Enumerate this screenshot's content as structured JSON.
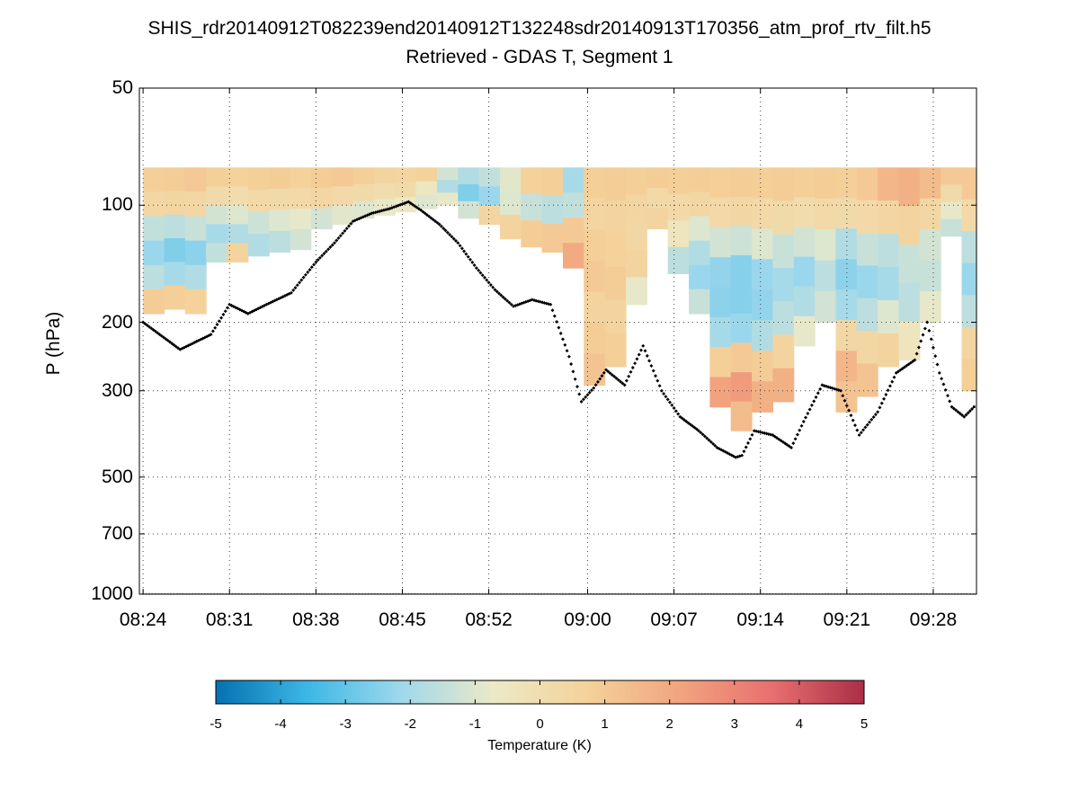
{
  "chart_data": {
    "type": "heatmap",
    "title": "SHIS_rdr20140912T082239end20140912T132248sdr20140913T170356_atm_prof_rtv_filt.h5",
    "subtitle": "Retrieved - GDAS T, Segment 1",
    "ylabel": "P (hPa)",
    "yscale": "log",
    "yaxis_reversed": true,
    "ylim": [
      50,
      1000
    ],
    "y_ticks": [
      50,
      100,
      200,
      300,
      500,
      700,
      1000
    ],
    "y_tick_labels": [
      "50",
      "100",
      "200",
      "300",
      "500",
      "700",
      "1000"
    ],
    "x_range_minutes": [
      -0.3,
      67.5
    ],
    "x_tick_minutes": [
      0,
      7,
      14,
      21,
      28,
      36,
      43,
      50,
      57,
      64
    ],
    "x_tick_labels": [
      "08:24",
      "08:31",
      "08:38",
      "08:45",
      "08:52",
      "09:00",
      "09:07",
      "09:14",
      "09:21",
      "09:28"
    ],
    "grid": true,
    "colorbar": {
      "label": "Temperature (K)",
      "min": -5,
      "max": 5,
      "ticks": [
        -5,
        -4,
        -3,
        -2,
        -1,
        0,
        1,
        2,
        3,
        4,
        5
      ],
      "tick_labels": [
        "-5",
        "-4",
        "-3",
        "-2",
        "-1",
        "0",
        "1",
        "2",
        "3",
        "4",
        "5"
      ],
      "colormap": [
        "#0571b0",
        "#3cb8e6",
        "#9fd8ec",
        "#ece9c7",
        "#f4d29a",
        "#f2a57f",
        "#e87070",
        "#ab2e46"
      ]
    },
    "field": {
      "p_top": 80,
      "cols": [
        {
          "t": 0.0,
          "bottom": 190,
          "values": [
            0.8,
            0.4,
            -1.5,
            -2.2,
            -1.6,
            0.9
          ]
        },
        {
          "t": 1.7,
          "bottom": 185,
          "values": [
            0.9,
            0.5,
            -1.6,
            -2.6,
            -2.0,
            0.8
          ]
        },
        {
          "t": 3.4,
          "bottom": 190,
          "values": [
            1.0,
            0.4,
            -1.4,
            -2.4,
            -1.8,
            0.7
          ]
        },
        {
          "t": 5.1,
          "bottom": 140,
          "values": [
            0.8,
            0.2,
            -1.2,
            -2.0,
            -1.5
          ]
        },
        {
          "t": 6.8,
          "bottom": 140,
          "values": [
            0.7,
            0.1,
            -1.0,
            -1.8,
            0.6
          ]
        },
        {
          "t": 8.5,
          "bottom": 135,
          "values": [
            0.8,
            0.3,
            -1.3,
            -1.8
          ]
        },
        {
          "t": 10.2,
          "bottom": 132,
          "values": [
            0.9,
            0.2,
            -1.0,
            -1.6
          ]
        },
        {
          "t": 11.9,
          "bottom": 130,
          "values": [
            0.7,
            0.3,
            -0.8,
            -1.2
          ]
        },
        {
          "t": 13.6,
          "bottom": 115,
          "values": [
            0.9,
            0.4,
            -1.2
          ]
        },
        {
          "t": 15.3,
          "bottom": 112,
          "values": [
            1.0,
            0.3,
            -0.9
          ]
        },
        {
          "t": 17.0,
          "bottom": 108,
          "values": [
            0.8,
            0.2,
            -1.0
          ]
        },
        {
          "t": 18.7,
          "bottom": 106,
          "values": [
            0.6,
            0.1,
            -0.8
          ]
        },
        {
          "t": 20.4,
          "bottom": 104,
          "values": [
            0.5,
            0.2,
            -0.6
          ]
        },
        {
          "t": 22.1,
          "bottom": 102,
          "values": [
            0.7,
            -0.5,
            -1.0
          ]
        },
        {
          "t": 23.8,
          "bottom": 100,
          "values": [
            -1.2,
            -1.8,
            -0.8
          ]
        },
        {
          "t": 25.5,
          "bottom": 108,
          "values": [
            -1.8,
            -2.6,
            -1.2
          ]
        },
        {
          "t": 27.2,
          "bottom": 112,
          "values": [
            -1.5,
            -2.2,
            0.5
          ]
        },
        {
          "t": 28.9,
          "bottom": 122,
          "values": [
            -0.9,
            -1.0,
            0.6
          ]
        },
        {
          "t": 30.6,
          "bottom": 128,
          "values": [
            0.7,
            -1.4,
            0.9
          ]
        },
        {
          "t": 32.3,
          "bottom": 132,
          "values": [
            0.8,
            -1.6,
            1.0
          ]
        },
        {
          "t": 34.0,
          "bottom": 145,
          "values": [
            -2.0,
            -1.5,
            1.0,
            2.0
          ]
        },
        {
          "t": 35.7,
          "bottom": 290,
          "values": [
            0.8,
            0.5,
            0.8,
            1.0,
            0.6,
            0.9,
            1.2
          ]
        },
        {
          "t": 37.4,
          "bottom": 260,
          "values": [
            0.9,
            0.6,
            0.7,
            0.9,
            0.6,
            0.8
          ]
        },
        {
          "t": 39.1,
          "bottom": 180,
          "values": [
            0.8,
            0.5,
            0.4,
            0.6,
            -0.8
          ]
        },
        {
          "t": 40.8,
          "bottom": 115,
          "values": [
            0.9,
            0.3,
            0.6
          ]
        },
        {
          "t": 42.5,
          "bottom": 150,
          "values": [
            0.8,
            0.3,
            -0.4,
            -1.6
          ]
        },
        {
          "t": 44.2,
          "bottom": 190,
          "values": [
            0.9,
            0.4,
            -1.0,
            -1.8,
            -2.2,
            -1.4
          ]
        },
        {
          "t": 45.9,
          "bottom": 330,
          "values": [
            0.8,
            0.3,
            -1.2,
            -2.3,
            -2.4,
            -2.0,
            0.8,
            2.2
          ]
        },
        {
          "t": 47.6,
          "bottom": 380,
          "values": [
            0.9,
            0.4,
            -1.3,
            -2.5,
            -2.5,
            -2.2,
            1.0,
            2.4,
            1.4
          ]
        },
        {
          "t": 49.3,
          "bottom": 340,
          "values": [
            0.8,
            0.3,
            -1.0,
            -2.2,
            -2.3,
            -1.8,
            0.9,
            1.8
          ]
        },
        {
          "t": 51.0,
          "bottom": 320,
          "values": [
            0.9,
            0.2,
            -1.4,
            -2.0,
            -1.6,
            0.6,
            1.8
          ]
        },
        {
          "t": 52.7,
          "bottom": 230,
          "values": [
            0.8,
            0.1,
            -1.2,
            -2.2,
            -1.8,
            -0.8
          ]
        },
        {
          "t": 54.4,
          "bottom": 200,
          "values": [
            0.9,
            0.3,
            -1.0,
            -1.6,
            -1.2
          ]
        },
        {
          "t": 56.1,
          "bottom": 340,
          "values": [
            0.8,
            0.2,
            -1.8,
            -2.4,
            -2.0,
            0.4,
            1.6,
            1.2
          ]
        },
        {
          "t": 57.8,
          "bottom": 310,
          "values": [
            1.0,
            0.3,
            -1.4,
            -2.2,
            -1.6,
            0.4,
            1.2
          ]
        },
        {
          "t": 59.5,
          "bottom": 260,
          "values": [
            1.6,
            0.5,
            -1.6,
            -2.0,
            -1.0,
            0.6
          ]
        },
        {
          "t": 61.2,
          "bottom": 250,
          "values": [
            1.8,
            0.6,
            -1.4,
            -1.6,
            -0.4
          ]
        },
        {
          "t": 62.9,
          "bottom": 200,
          "values": [
            1.4,
            0.4,
            -1.2,
            -1.4,
            -0.8
          ]
        },
        {
          "t": 64.6,
          "bottom": 120,
          "values": [
            1.0,
            0.2,
            -0.8,
            -1.4
          ]
        },
        {
          "t": 66.3,
          "bottom": 300,
          "values": [
            1.0,
            0.3,
            -1.6,
            -2.2,
            -1.6,
            0.5,
            0.8
          ]
        }
      ]
    },
    "cloud_top_markers": {
      "t": [
        0,
        3,
        5.5,
        7,
        8.5,
        10,
        12,
        14,
        15.5,
        17,
        18.5,
        20,
        21.5,
        22.5,
        24,
        25.5,
        27,
        28.5,
        30,
        31.5,
        33,
        34.5,
        35.5,
        36.5,
        37.5,
        39,
        40.5,
        42,
        43.5,
        45,
        46.5,
        48,
        48.5,
        49.5,
        51,
        52.5,
        53.5,
        55,
        56.5,
        58,
        59.5,
        61,
        62.5,
        63.5,
        64.5,
        65.5,
        66.5,
        67.3
      ],
      "pressure": [
        200,
        235,
        215,
        180,
        190,
        180,
        168,
        140,
        125,
        110,
        105,
        102,
        98,
        103,
        112,
        125,
        145,
        165,
        182,
        175,
        180,
        245,
        320,
        295,
        265,
        290,
        230,
        300,
        350,
        380,
        420,
        445,
        440,
        380,
        390,
        420,
        360,
        290,
        300,
        390,
        340,
        270,
        250,
        200,
        270,
        330,
        350,
        330
      ]
    },
    "surface_markers": {
      "pressure": 1000,
      "t_range": [
        0,
        67.5
      ],
      "spacing_minutes": 0.25
    }
  }
}
